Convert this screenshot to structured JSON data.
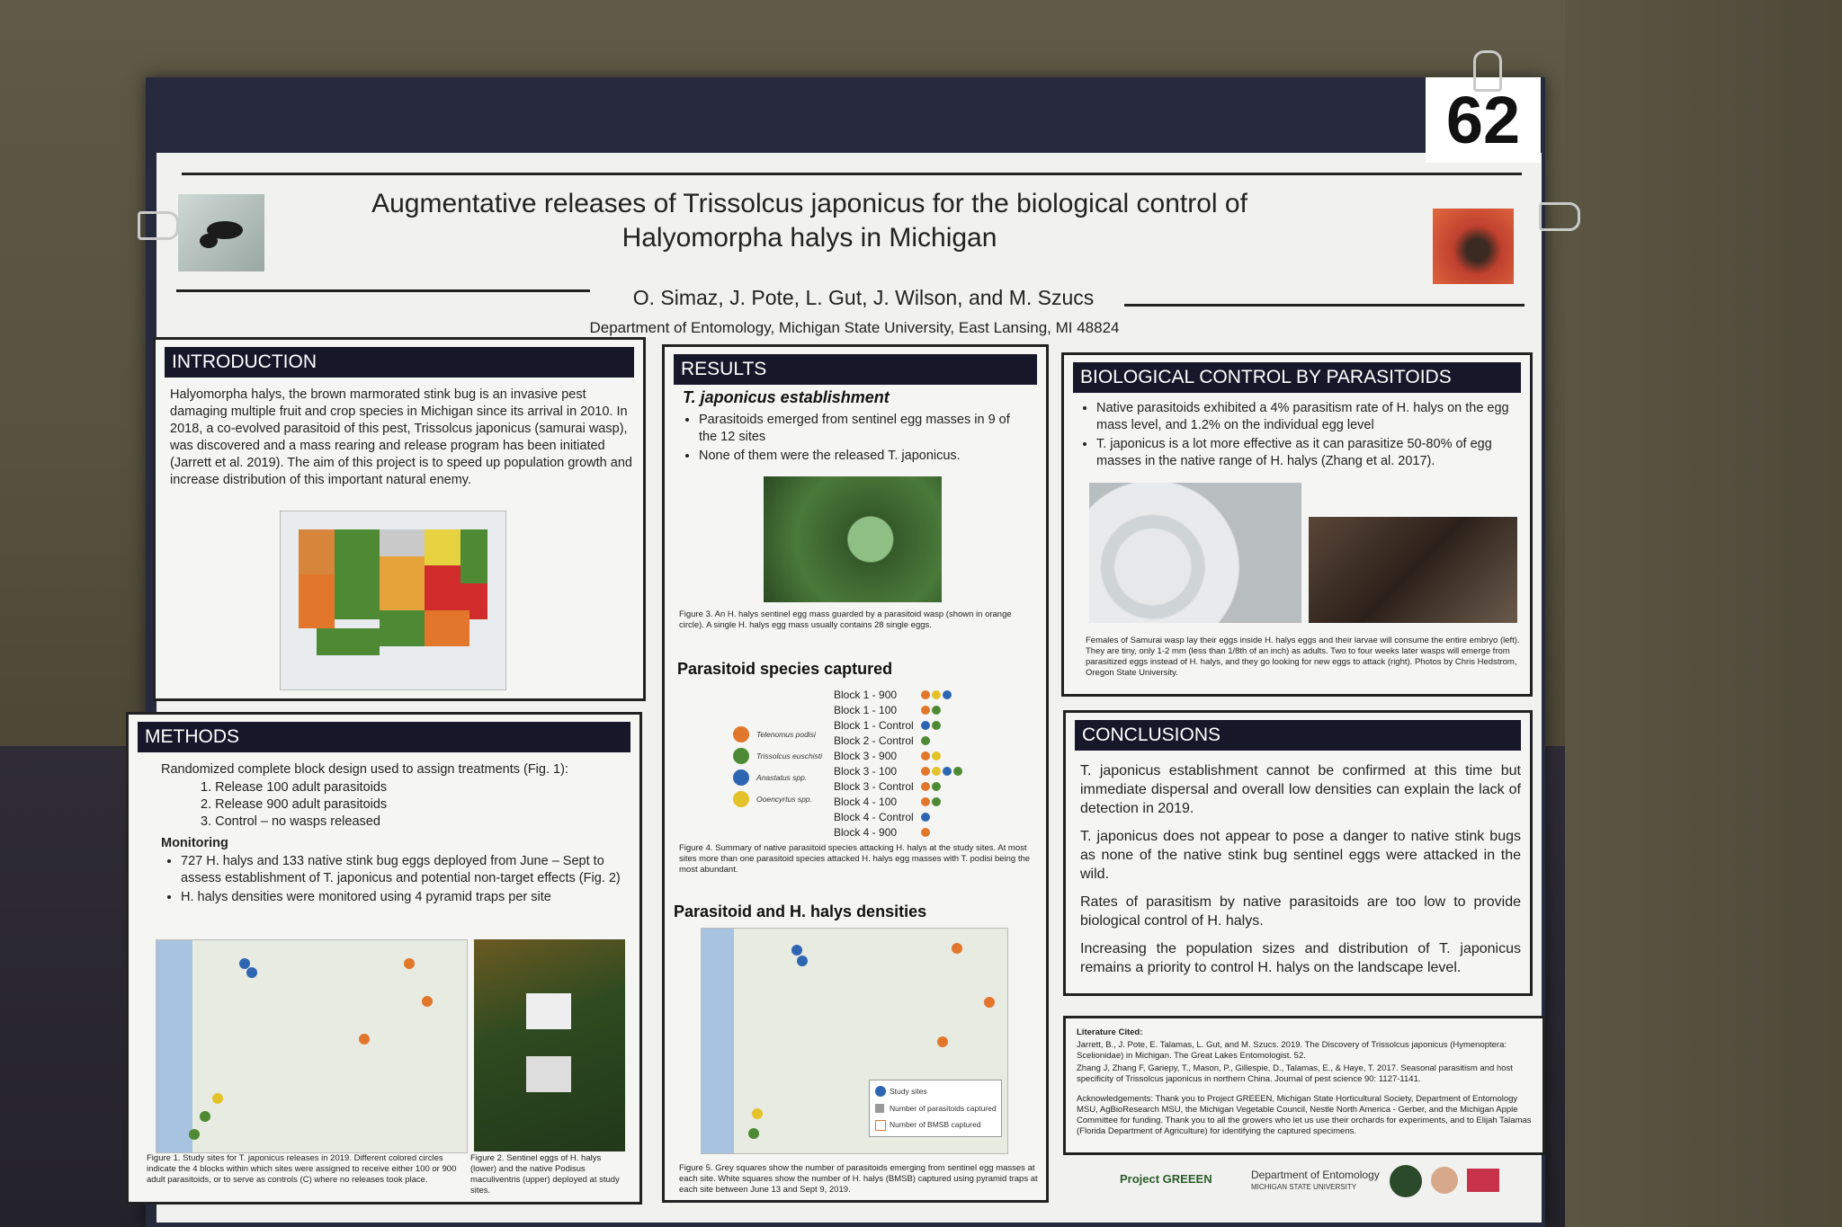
{
  "tag_number": "62",
  "title_line1": "Augmentative releases of Trissolcus japonicus for the biological control of",
  "title_line2": "Halyomorpha halys in Michigan",
  "authors": "O. Simaz, J. Pote, L. Gut, J. Wilson, and M. Szucs",
  "department": "Department of Entomology, Michigan State University, East Lansing, MI 48824",
  "intro": {
    "header": "INTRODUCTION",
    "text": "Halyomorpha halys, the brown marmorated stink bug is an invasive pest damaging multiple fruit and crop species in Michigan since its arrival in 2010. In 2018, a co-evolved parasitoid of this pest, Trissolcus japonicus (samurai wasp), was discovered and a mass rearing and release program has been initiated (Jarrett et al. 2019). The aim of this project is to speed up population growth and increase distribution of this important natural enemy."
  },
  "methods": {
    "header": "METHODS",
    "intro": "Randomized complete block design used to assign treatments (Fig. 1):",
    "treatments": [
      "1. Release 100 adult parasitoids",
      "2. Release 900 adult parasitoids",
      "3. Control – no wasps released"
    ],
    "monitoring_label": "Monitoring",
    "monitoring": [
      "727 H. halys and 133 native stink bug eggs deployed from June – Sept to assess establishment of T. japonicus and potential non-target effects (Fig. 2)",
      "H. halys densities were monitored using 4 pyramid traps per site"
    ],
    "fig1_caption": "Figure 1. Study sites for T. japonicus releases in 2019. Different colored circles indicate the 4 blocks within which sites were assigned to receive either 100 or 900 adult parasitoids, or to serve as controls (C) where no releases took place.",
    "fig2_caption": "Figure 2. Sentinel eggs of H. halys (lower) and the native Podisus maculiventris (upper) deployed at study sites."
  },
  "results": {
    "header": "RESULTS",
    "sub1": "T. japonicus establishment",
    "bullets": [
      "Parasitoids emerged from sentinel egg masses in 9 of the 12 sites",
      "None of them were the released T. japonicus."
    ],
    "fig3_caption": "Figure 3. An H. halys sentinel egg mass guarded by a parasitoid wasp (shown in orange circle). A single H. halys egg mass usually contains 28 single eggs.",
    "sub2": "Parasitoid species captured",
    "species_legend": [
      "Telenomus podisi",
      "Trissolcus euschisti",
      "Anastatus spp.",
      "Ooencyrtus spp."
    ],
    "blocks": [
      "Block 1 - 900",
      "Block 1 - 100",
      "Block 1 - Control",
      "Block 2 - Control",
      "Block 3 - 900",
      "Block 3 - 100",
      "Block 3 - Control",
      "Block 4 - 100",
      "Block 4 - Control",
      "Block 4 - 900"
    ],
    "fig4_caption": "Figure 4. Summary of native parasitoid species attacking H. halys at the study sites. At most sites more than one parasitoid species attacked H. halys egg masses with T. podisi being the most abundant.",
    "sub3": "Parasitoid and H. halys densities",
    "map_legend": [
      "Study sites",
      "Number of parasitoids captured",
      "Number of BMSB captured"
    ],
    "fig5_caption": "Figure 5. Grey squares show the number of parasitoids emerging from sentinel egg masses at each site. White squares show the number of H. halys (BMSB) captured using pyramid traps at each site between June 13 and Sept 9, 2019."
  },
  "biocontrol": {
    "header": "BIOLOGICAL CONTROL BY PARASITOIDS",
    "bullets": [
      "Native parasitoids exhibited a 4% parasitism rate of H. halys on the egg mass level, and 1.2% on the individual egg level",
      "T. japonicus is a lot more effective as it can parasitize 50-80% of egg masses in the native range of H. halys (Zhang et al. 2017)."
    ],
    "caption": "Females of Samurai wasp lay their eggs inside H. halys eggs and their larvae will consume the entire embryo (left). They are tiny, only 1-2 mm (less than 1/8th of an inch) as adults. Two to four weeks later wasps will emerge from parasitized eggs instead of H. halys, and they go looking for new eggs to attack (right). Photos by Chris Hedstrom, Oregon State University."
  },
  "conclusions": {
    "header": "CONCLUSIONS",
    "paras": [
      "T. japonicus establishment cannot be confirmed at this time but immediate dispersal and overall low densities can explain the lack of detection in 2019.",
      "T. japonicus does not appear to pose a danger to native stink bugs as none of the native stink bug sentinel eggs were attacked in the wild.",
      "Rates of parasitism by native parasitoids are too low to provide biological control of H. halys.",
      "Increasing the population sizes and distribution of T. japonicus remains a priority to control H. halys on the landscape level."
    ]
  },
  "literature": {
    "label": "Literature Cited:",
    "refs": [
      "Jarrett, B., J. Pote, E. Talamas, L. Gut, and M. Szucs. 2019. The Discovery of Trissolcus japonicus (Hymenoptera: Scelionidae) in Michigan. The Great Lakes Entomologist. 52.",
      "Zhang J, Zhang F, Gariepy, T., Mason, P., Gillespie, D., Talamas, E., & Haye, T. 2017. Seasonal parasitism and host specificity of Trissolcus japonicus in northern China. Journal of pest science 90: 1127-1141."
    ],
    "ack": "Acknowledgements: Thank you to Project GREEEN, Michigan State Horticultural Society, Department of Entomology MSU, AgBioResearch MSU, the Michigan Vegetable Council, Nestle North America - Gerber, and the Michigan Apple Committee for funding. Thank you to all the growers who let us use their orchards for experiments, and to Elijah Talamas (Florida Department of Agriculture) for identifying the captured specimens."
  },
  "footer_logos": {
    "project": "Project GREEEN",
    "dept": "Department of Entomology",
    "msu": "MICHIGAN STATE UNIVERSITY"
  },
  "colors": {
    "panel_header": "#16182a",
    "orange": "#e2772c",
    "green": "#4e8a34",
    "blue": "#2f66b3",
    "yellow": "#e4c22a"
  }
}
